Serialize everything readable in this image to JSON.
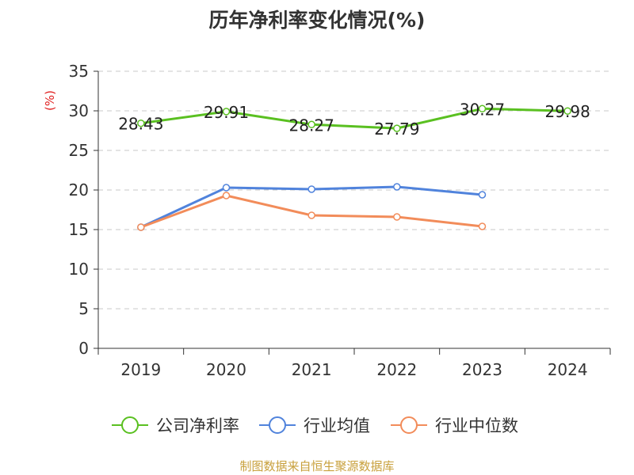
{
  "chart_data": {
    "type": "line",
    "title": "历年净利率变化情况(%)",
    "ylabel": "(%)",
    "xlabel": "",
    "categories": [
      "2019",
      "2020",
      "2021",
      "2022",
      "2023",
      "2024"
    ],
    "ylim": [
      0,
      35
    ],
    "yticks": [
      0,
      5,
      10,
      15,
      20,
      25,
      30,
      35
    ],
    "grid": true,
    "legend_position": "bottom",
    "series": [
      {
        "name": "公司净利率",
        "color": "#5ac021",
        "values": [
          28.43,
          29.91,
          28.27,
          27.79,
          30.27,
          29.98
        ],
        "show_labels": true
      },
      {
        "name": "行业均值",
        "color": "#5083dc",
        "values": [
          15.3,
          20.3,
          20.1,
          20.4,
          19.4,
          null
        ],
        "show_labels": false
      },
      {
        "name": "行业中位数",
        "color": "#f28c5a",
        "values": [
          15.3,
          19.3,
          16.8,
          16.6,
          15.4,
          null
        ],
        "show_labels": false
      }
    ]
  },
  "source": "制图数据来自恒生聚源数据库"
}
